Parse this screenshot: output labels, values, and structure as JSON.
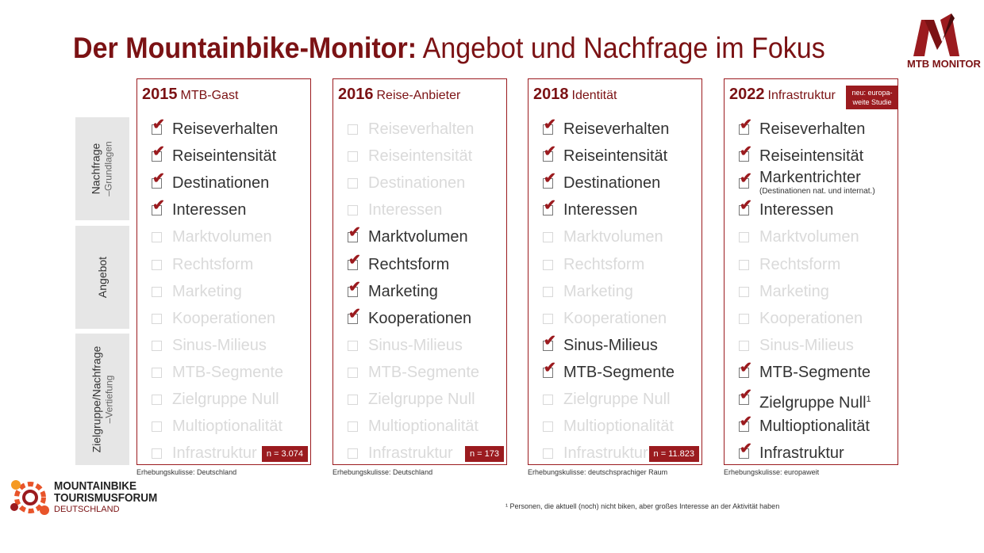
{
  "title": {
    "bold": "Der Mountainbike-Monitor:",
    "rest": " Angebot und Nachfrage im Fokus"
  },
  "logo": {
    "caption": "MTB MONITOR"
  },
  "row_labels": [
    {
      "main": "Nachfrage",
      "sub": "–Grundlagen"
    },
    {
      "main": "Angebot",
      "sub": ""
    },
    {
      "main": "Zielgruppe/Nachfrage",
      "sub": "–Vertiefung"
    }
  ],
  "columns": [
    {
      "year": "2015",
      "name": "MTB-Gast",
      "badge": "",
      "n": "n = 3.074",
      "caption": "Erhebungskulisse: Deutschland",
      "items": [
        {
          "label": "Reiseverhalten",
          "checked": true
        },
        {
          "label": "Reiseintensität",
          "checked": true
        },
        {
          "label": "Destinationen",
          "checked": true
        },
        {
          "label": "Interessen",
          "checked": true
        },
        {
          "label": "Marktvolumen",
          "checked": false
        },
        {
          "label": "Rechtsform",
          "checked": false
        },
        {
          "label": "Marketing",
          "checked": false
        },
        {
          "label": "Kooperationen",
          "checked": false
        },
        {
          "label": "Sinus-Milieus",
          "checked": false
        },
        {
          "label": "MTB-Segmente",
          "checked": false
        },
        {
          "label": "Zielgruppe Null",
          "checked": false
        },
        {
          "label": "Multioptionalität",
          "checked": false
        },
        {
          "label": "Infrastruktur",
          "checked": false
        }
      ]
    },
    {
      "year": "2016",
      "name": "Reise-Anbieter",
      "badge": "",
      "n": "n = 173",
      "caption": "Erhebungskulisse: Deutschland",
      "items": [
        {
          "label": "Reiseverhalten",
          "checked": false
        },
        {
          "label": "Reiseintensität",
          "checked": false
        },
        {
          "label": "Destinationen",
          "checked": false
        },
        {
          "label": "Interessen",
          "checked": false
        },
        {
          "label": "Marktvolumen",
          "checked": true
        },
        {
          "label": "Rechtsform",
          "checked": true
        },
        {
          "label": "Marketing",
          "checked": true
        },
        {
          "label": "Kooperationen",
          "checked": true
        },
        {
          "label": "Sinus-Milieus",
          "checked": false
        },
        {
          "label": "MTB-Segmente",
          "checked": false
        },
        {
          "label": "Zielgruppe Null",
          "checked": false
        },
        {
          "label": "Multioptionalität",
          "checked": false
        },
        {
          "label": "Infrastruktur",
          "checked": false
        }
      ]
    },
    {
      "year": "2018",
      "name": "Identität",
      "badge": "",
      "n": "n = 11.823",
      "caption": "Erhebungskulisse: deutschsprachiger Raum",
      "items": [
        {
          "label": "Reiseverhalten",
          "checked": true
        },
        {
          "label": "Reiseintensität",
          "checked": true
        },
        {
          "label": "Destinationen",
          "checked": true
        },
        {
          "label": "Interessen",
          "checked": true
        },
        {
          "label": "Marktvolumen",
          "checked": false
        },
        {
          "label": "Rechtsform",
          "checked": false
        },
        {
          "label": "Marketing",
          "checked": false
        },
        {
          "label": "Kooperationen",
          "checked": false
        },
        {
          "label": "Sinus-Milieus",
          "checked": true
        },
        {
          "label": "MTB-Segmente",
          "checked": true
        },
        {
          "label": "Zielgruppe Null",
          "checked": false
        },
        {
          "label": "Multioptionalität",
          "checked": false
        },
        {
          "label": "Infrastruktur",
          "checked": false
        }
      ]
    },
    {
      "year": "2022",
      "name": "Infrastruktur",
      "badge": "neu: europa-weite Studie",
      "n": "",
      "caption": "Erhebungskulisse: europaweit",
      "items": [
        {
          "label": "Reiseverhalten",
          "checked": true
        },
        {
          "label": "Reiseintensität",
          "checked": true
        },
        {
          "label": "Markentrichter",
          "checked": true,
          "note": "(Destinationen nat. und internat.)"
        },
        {
          "label": "Interessen",
          "checked": true
        },
        {
          "label": "Marktvolumen",
          "checked": false
        },
        {
          "label": "Rechtsform",
          "checked": false
        },
        {
          "label": "Marketing",
          "checked": false
        },
        {
          "label": "Kooperationen",
          "checked": false
        },
        {
          "label": "Sinus-Milieus",
          "checked": false
        },
        {
          "label": "MTB-Segmente",
          "checked": true
        },
        {
          "label": "Zielgruppe Null",
          "checked": true,
          "sup": "1"
        },
        {
          "label": "Multioptionalität",
          "checked": true
        },
        {
          "label": "Infrastruktur",
          "checked": true
        }
      ]
    }
  ],
  "forum": {
    "line1": "MOUNTAINBIKE",
    "line2": "TOURISMUSFORUM",
    "line3": "DEUTSCHLAND"
  },
  "footnote": "¹ Personen, die aktuell (noch) nicht biken, aber großes Interesse an der Aktivität haben"
}
